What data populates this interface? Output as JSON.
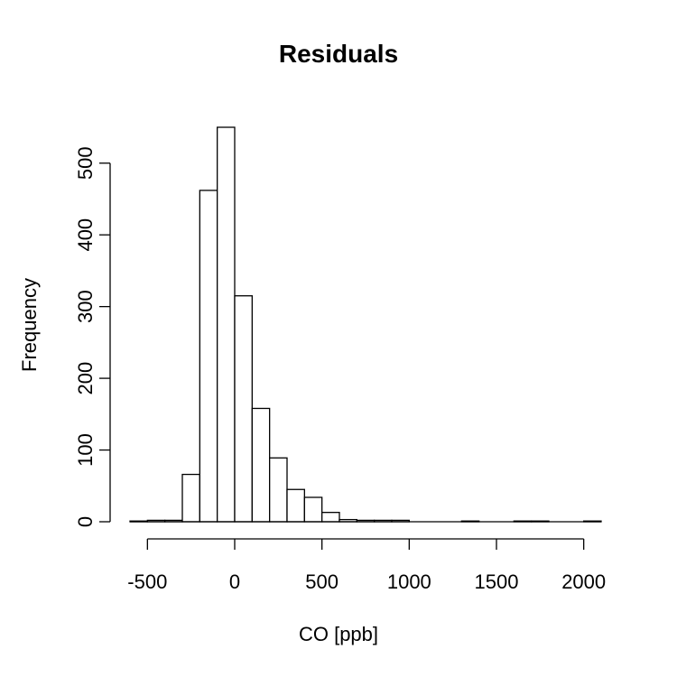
{
  "chart_data": {
    "type": "bar",
    "title": "Residuals",
    "xlabel": "CO [ppb]",
    "ylabel": "Frequency",
    "xlim": [
      -600,
      2100
    ],
    "ylim": [
      0,
      550
    ],
    "bin_width": 100,
    "bins": [
      {
        "x0": -600,
        "x1": -500,
        "count": 1
      },
      {
        "x0": -500,
        "x1": -400,
        "count": 2
      },
      {
        "x0": -400,
        "x1": -300,
        "count": 2
      },
      {
        "x0": -300,
        "x1": -200,
        "count": 66
      },
      {
        "x0": -200,
        "x1": -100,
        "count": 462
      },
      {
        "x0": -100,
        "x1": 0,
        "count": 550
      },
      {
        "x0": 0,
        "x1": 100,
        "count": 315
      },
      {
        "x0": 100,
        "x1": 200,
        "count": 158
      },
      {
        "x0": 200,
        "x1": 300,
        "count": 89
      },
      {
        "x0": 300,
        "x1": 400,
        "count": 45
      },
      {
        "x0": 400,
        "x1": 500,
        "count": 34
      },
      {
        "x0": 500,
        "x1": 600,
        "count": 13
      },
      {
        "x0": 600,
        "x1": 700,
        "count": 3
      },
      {
        "x0": 700,
        "x1": 800,
        "count": 2
      },
      {
        "x0": 800,
        "x1": 900,
        "count": 2
      },
      {
        "x0": 900,
        "x1": 1000,
        "count": 2
      },
      {
        "x0": 1000,
        "x1": 1100,
        "count": 0
      },
      {
        "x0": 1100,
        "x1": 1200,
        "count": 0
      },
      {
        "x0": 1200,
        "x1": 1300,
        "count": 0
      },
      {
        "x0": 1300,
        "x1": 1400,
        "count": 1
      },
      {
        "x0": 1400,
        "x1": 1500,
        "count": 0
      },
      {
        "x0": 1500,
        "x1": 1600,
        "count": 0
      },
      {
        "x0": 1600,
        "x1": 1700,
        "count": 1
      },
      {
        "x0": 1700,
        "x1": 1800,
        "count": 1
      },
      {
        "x0": 1800,
        "x1": 1900,
        "count": 0
      },
      {
        "x0": 1900,
        "x1": 2000,
        "count": 0
      },
      {
        "x0": 2000,
        "x1": 2100,
        "count": 1
      }
    ],
    "x_ticks": [
      -500,
      0,
      500,
      1000,
      1500,
      2000
    ],
    "x_tick_labels": [
      "-500",
      "0",
      "500",
      "1000",
      "1500",
      "2000"
    ],
    "y_ticks": [
      0,
      100,
      200,
      300,
      400,
      500
    ],
    "y_tick_labels": [
      "0",
      "100",
      "200",
      "300",
      "400",
      "500"
    ],
    "grid": false,
    "legend": "none"
  }
}
